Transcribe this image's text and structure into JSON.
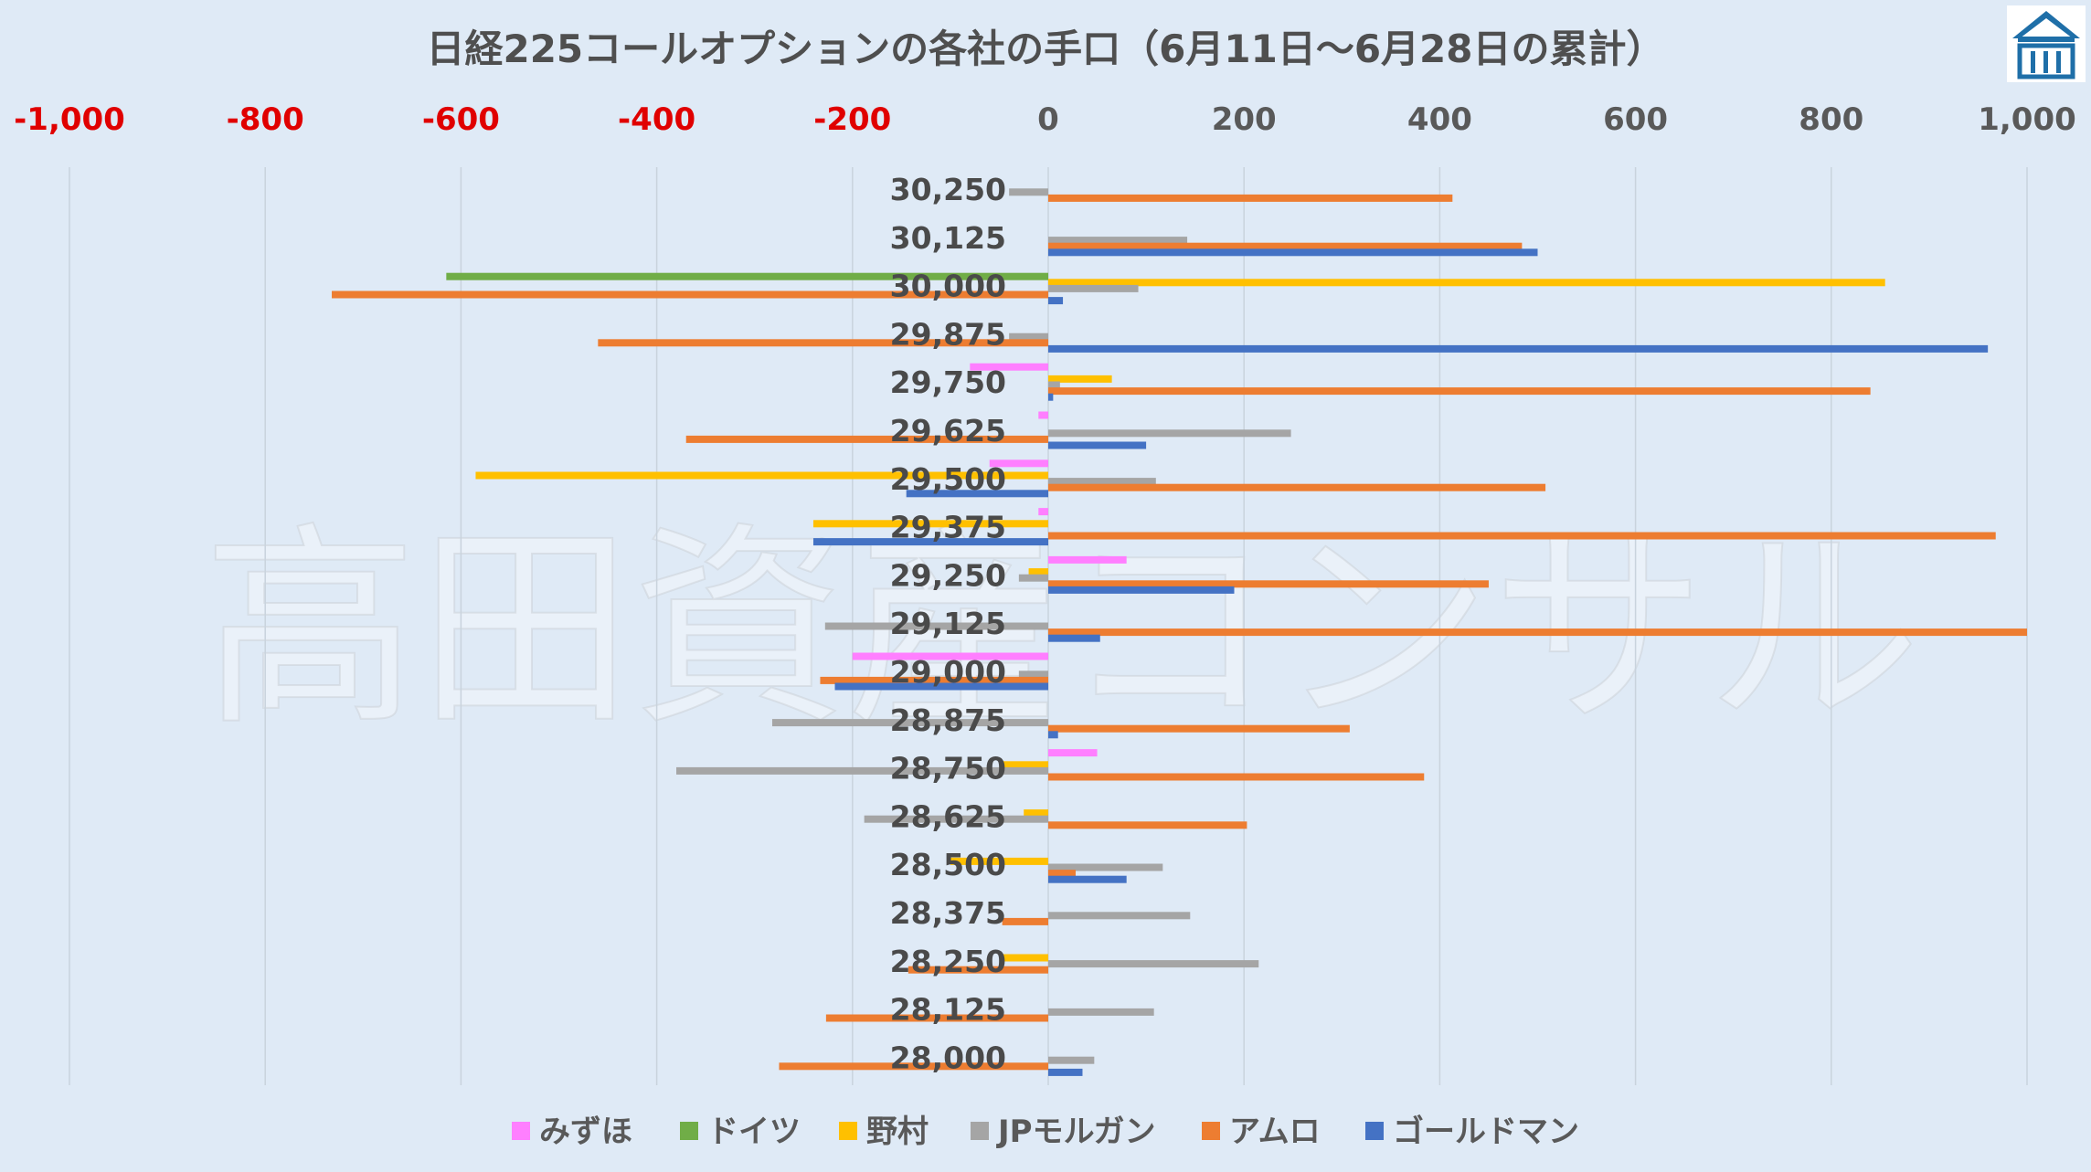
{
  "watermark": "高田資産コンサル",
  "chart_data": {
    "type": "bar",
    "orientation": "horizontal",
    "title": "日経225コールオプションの各社の手口（6月11日～6月28日の累計）",
    "xlim": [
      -1000,
      1000
    ],
    "xticks": [
      -1000,
      -800,
      -600,
      -400,
      -200,
      0,
      200,
      400,
      600,
      800,
      1000
    ],
    "xtick_labels": [
      "-1,000",
      "-800",
      "-600",
      "-400",
      "-200",
      "0",
      "200",
      "400",
      "600",
      "800",
      "1,000"
    ],
    "negative_tick_color": "#e00000",
    "positive_tick_color": "#595959",
    "grid": true,
    "legend_position": "bottom",
    "categories": [
      "30,250",
      "30,125",
      "30,000",
      "29,875",
      "29,750",
      "29,625",
      "29,500",
      "29,375",
      "29,250",
      "29,125",
      "29,000",
      "28,875",
      "28,750",
      "28,625",
      "28,500",
      "28,375",
      "28,250",
      "28,125",
      "28,000"
    ],
    "series": [
      {
        "name": "みずほ",
        "color": "#ff7fff",
        "values": [
          0,
          0,
          0,
          0,
          -80,
          -10,
          -60,
          -10,
          80,
          0,
          -200,
          0,
          50,
          0,
          0,
          0,
          0,
          0,
          0
        ]
      },
      {
        "name": "ドイツ",
        "color": "#70ad47",
        "values": [
          0,
          0,
          -615,
          0,
          0,
          0,
          0,
          0,
          0,
          0,
          0,
          0,
          0,
          0,
          0,
          0,
          0,
          0,
          0
        ]
      },
      {
        "name": "野村",
        "color": "#ffc000",
        "values": [
          0,
          0,
          855,
          0,
          65,
          0,
          -585,
          -240,
          -20,
          0,
          0,
          0,
          -50,
          -25,
          -100,
          0,
          -50,
          0,
          0
        ]
      },
      {
        "name": "JPモルガン",
        "color": "#a5a5a5",
        "values": [
          -40,
          142,
          92,
          -40,
          12,
          248,
          110,
          0,
          -30,
          -228,
          -30,
          -282,
          -380,
          -188,
          117,
          145,
          215,
          108,
          47
        ]
      },
      {
        "name": "アムロ",
        "color": "#ed7d31",
        "values": [
          413,
          484,
          -732,
          -460,
          840,
          -370,
          508,
          968,
          450,
          1000,
          -233,
          308,
          384,
          203,
          28,
          -47,
          -143,
          -227,
          -275
        ]
      },
      {
        "name": "ゴールドマン",
        "color": "#4472c4",
        "values": [
          0,
          500,
          15,
          960,
          5,
          100,
          -145,
          -240,
          190,
          53,
          -218,
          10,
          0,
          0,
          80,
          0,
          0,
          0,
          35
        ]
      }
    ]
  }
}
